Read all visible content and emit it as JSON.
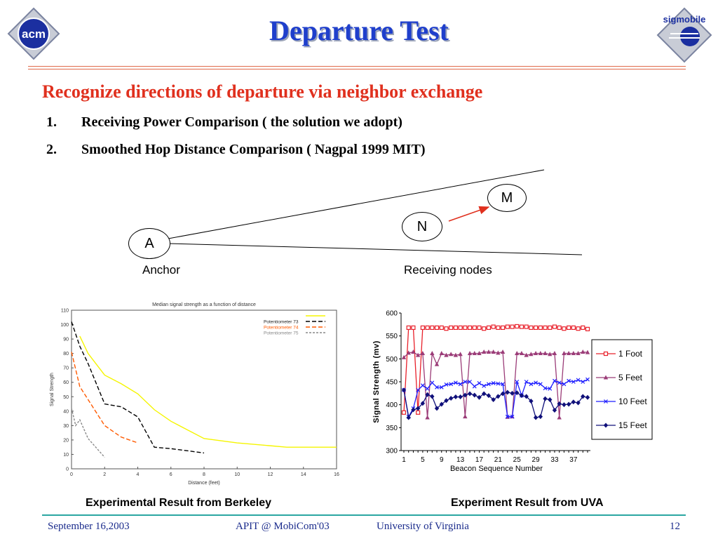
{
  "slide": {
    "title": "Departure Test",
    "subtitle": "Recognize directions of departure via neighbor exchange",
    "items": [
      {
        "num": "1.",
        "text": "Receiving Power Comparison ( the solution we adopt)"
      },
      {
        "num": "2.",
        "text": "Smoothed Hop Distance Comparison ( Nagpal 1999 MIT)"
      }
    ],
    "logos": {
      "left": "acm",
      "right": "sigmobile"
    },
    "colors": {
      "title": "#1f3fcc",
      "subtitle": "#e0301e",
      "footer": "#1a2b8c",
      "footer_line": "#2aa6a2",
      "rule": "#e06a4a"
    }
  },
  "diagram": {
    "nodes": {
      "anchor": "A",
      "n": "N",
      "m": "M"
    },
    "labels": {
      "anchor": "Anchor",
      "receiving": "Receiving nodes"
    },
    "arrow_color": "#e0301e"
  },
  "captions": {
    "left": "Experimental Result from Berkeley",
    "right": "Experiment Result from UVA"
  },
  "footer": {
    "date": "September 16,2003",
    "venue": "APIT @ MobiCom'03",
    "org": "University of Virginia",
    "page": "12"
  },
  "chart_data": [
    {
      "type": "line",
      "title": "Median signal strength as a function of distance",
      "xlabel": "Distance (feet)",
      "ylabel": "Signal Strength",
      "xlim": [
        0,
        16
      ],
      "ylim": [
        0,
        110
      ],
      "x_ticks": [
        "0",
        "2",
        "4",
        "6",
        "8",
        "10",
        "12",
        "14",
        "16"
      ],
      "y_ticks": [
        "0",
        "10",
        "20",
        "30",
        "40",
        "50",
        "60",
        "70",
        "80",
        "90",
        "100",
        "110"
      ],
      "legend_position": "top-right",
      "series": [
        {
          "name": "",
          "color": "#f5f500",
          "dash": "",
          "x": [
            0.5,
            1,
            2,
            3,
            4,
            5,
            6,
            8,
            10,
            12,
            13,
            14,
            16
          ],
          "y": [
            92,
            80,
            65,
            59,
            52,
            41,
            33,
            21,
            18,
            16,
            15,
            15,
            15
          ]
        },
        {
          "name": "Potentiometer 73",
          "color": "#000000",
          "dash": "6,3",
          "x": [
            0,
            0.5,
            1,
            2,
            3,
            4,
            5,
            6,
            8
          ],
          "y": [
            102,
            85,
            73,
            45,
            43,
            36,
            15,
            14,
            11
          ]
        },
        {
          "name": "Potentiometer 74",
          "color": "#ff5a00",
          "dash": "6,3",
          "x": [
            0,
            0.5,
            1,
            2,
            3,
            4
          ],
          "y": [
            81,
            57,
            48,
            30,
            22,
            18
          ]
        },
        {
          "name": "Potentiometer 75",
          "color": "#888888",
          "dash": "3,2",
          "x": [
            0,
            0.25,
            0.5,
            1,
            2
          ],
          "y": [
            42,
            30,
            34,
            21,
            8
          ]
        }
      ]
    },
    {
      "type": "line",
      "title": "",
      "xlabel": "Beacon Sequence Number",
      "ylabel": "Signal Strength (mv)",
      "xlim": [
        1,
        40
      ],
      "ylim": [
        300,
        600
      ],
      "x_ticks": [
        "1",
        "5",
        "9",
        "13",
        "17",
        "21",
        "25",
        "29",
        "33",
        "37"
      ],
      "y_ticks": [
        "300",
        "350",
        "400",
        "450",
        "500",
        "550",
        "600"
      ],
      "legend_position": "right",
      "series": [
        {
          "name": "1 Foot",
          "color": "#e8202a",
          "marker": "square",
          "x": [
            1,
            2,
            3,
            4,
            5,
            6,
            7,
            8,
            9,
            10,
            11,
            12,
            13,
            14,
            15,
            16,
            17,
            18,
            19,
            20,
            21,
            22,
            23,
            24,
            25,
            26,
            27,
            28,
            29,
            30,
            31,
            32,
            33,
            34,
            35,
            36,
            37,
            38,
            39,
            40
          ],
          "y": [
            383,
            568,
            568,
            383,
            568,
            568,
            568,
            568,
            568,
            566,
            568,
            568,
            568,
            568,
            568,
            568,
            568,
            566,
            568,
            570,
            568,
            568,
            570,
            570,
            571,
            570,
            570,
            568,
            568,
            568,
            568,
            568,
            570,
            568,
            566,
            568,
            568,
            566,
            568,
            565
          ]
        },
        {
          "name": "5 Feet",
          "color": "#9b3c78",
          "marker": "triangle",
          "x": [
            1,
            2,
            3,
            4,
            5,
            6,
            7,
            8,
            9,
            10,
            11,
            12,
            13,
            14,
            15,
            16,
            17,
            18,
            19,
            20,
            21,
            22,
            23,
            24,
            25,
            26,
            27,
            28,
            29,
            30,
            31,
            32,
            33,
            34,
            35,
            36,
            37,
            38,
            39,
            40
          ],
          "y": [
            503,
            513,
            515,
            508,
            512,
            372,
            512,
            488,
            512,
            508,
            510,
            508,
            510,
            374,
            512,
            512,
            512,
            515,
            515,
            515,
            513,
            515,
            373,
            374,
            512,
            512,
            508,
            510,
            512,
            512,
            512,
            510,
            512,
            372,
            512,
            512,
            512,
            512,
            515,
            514
          ]
        },
        {
          "name": "10 Feet",
          "color": "#1f1fff",
          "marker": "x",
          "x": [
            1,
            2,
            3,
            4,
            5,
            6,
            7,
            8,
            9,
            10,
            11,
            12,
            13,
            14,
            15,
            16,
            17,
            18,
            19,
            20,
            21,
            22,
            23,
            24,
            25,
            26,
            27,
            28,
            29,
            30,
            31,
            32,
            33,
            34,
            35,
            36,
            37,
            38,
            39,
            40
          ],
          "y": [
            432,
            374,
            392,
            432,
            442,
            435,
            448,
            438,
            438,
            444,
            445,
            448,
            445,
            450,
            450,
            440,
            447,
            441,
            445,
            447,
            446,
            445,
            374,
            374,
            450,
            420,
            450,
            445,
            448,
            445,
            436,
            435,
            452,
            448,
            445,
            452,
            450,
            454,
            450,
            455
          ]
        },
        {
          "name": "15 Feet",
          "color": "#10107a",
          "marker": "diamond",
          "x": [
            1,
            2,
            3,
            4,
            5,
            6,
            7,
            8,
            9,
            10,
            11,
            12,
            13,
            14,
            15,
            16,
            17,
            18,
            19,
            20,
            21,
            22,
            23,
            24,
            25,
            26,
            27,
            28,
            29,
            30,
            31,
            32,
            33,
            34,
            35,
            36,
            37,
            38,
            39,
            40
          ],
          "y": [
            432,
            372,
            389,
            392,
            403,
            422,
            418,
            392,
            401,
            409,
            414,
            417,
            417,
            421,
            424,
            421,
            416,
            424,
            420,
            411,
            418,
            424,
            427,
            425,
            426,
            420,
            418,
            408,
            372,
            374,
            413,
            411,
            388,
            402,
            400,
            401,
            406,
            404,
            418,
            416
          ]
        }
      ]
    }
  ]
}
